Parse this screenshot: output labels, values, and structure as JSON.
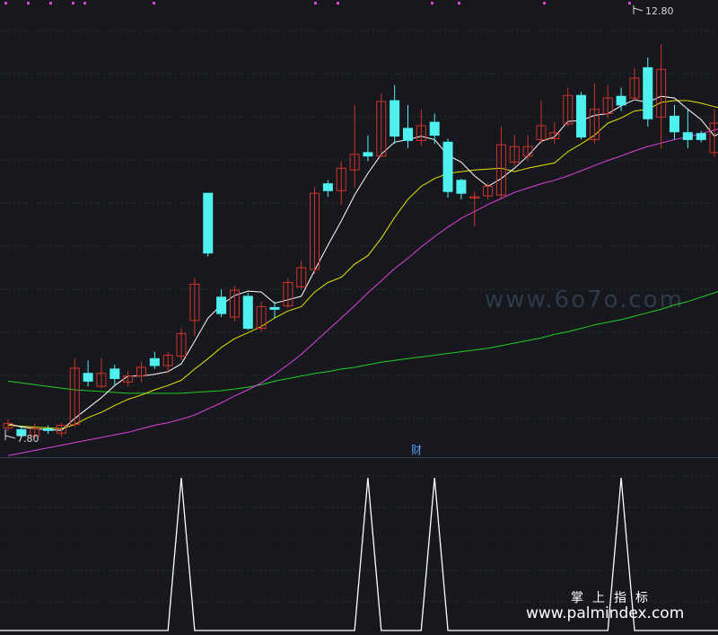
{
  "chart_data": [
    {
      "type": "candlestick",
      "y_range": [
        7.8,
        12.8
      ],
      "labels": {
        "max_price": "12.80",
        "min_price": "7.80"
      },
      "colors": {
        "up": "#d0342c",
        "down": "#4ef0f0",
        "ma5": "#ffffff",
        "ma10": "#e6e600",
        "ma20": "#e040e0",
        "ma60": "#22cc22"
      },
      "candles": [
        [
          7.92,
          7.97,
          8.02,
          7.88
        ],
        [
          7.9,
          7.83,
          7.95,
          7.81
        ],
        [
          7.83,
          7.91,
          7.97,
          7.8
        ],
        [
          7.91,
          7.89,
          7.95,
          7.85
        ],
        [
          7.86,
          7.95,
          7.98,
          7.82
        ],
        [
          7.96,
          8.61,
          8.72,
          7.93
        ],
        [
          8.55,
          8.46,
          8.7,
          8.4
        ],
        [
          8.4,
          8.55,
          8.73,
          8.38
        ],
        [
          8.6,
          8.49,
          8.65,
          8.4
        ],
        [
          8.45,
          8.52,
          8.58,
          8.4
        ],
        [
          8.52,
          8.62,
          8.68,
          8.45
        ],
        [
          8.72,
          8.64,
          8.8,
          8.6
        ],
        [
          8.64,
          8.76,
          8.8,
          8.55
        ],
        [
          8.75,
          9.01,
          9.08,
          8.7
        ],
        [
          9.16,
          9.58,
          9.65,
          8.98
        ],
        [
          10.63,
          9.94,
          10.6,
          9.9
        ],
        [
          9.43,
          9.24,
          9.52,
          9.2
        ],
        [
          9.2,
          9.51,
          9.56,
          9.15
        ],
        [
          9.44,
          9.07,
          9.48,
          9.05
        ],
        [
          9.07,
          9.32,
          9.38,
          9.03
        ],
        [
          9.31,
          9.29,
          9.38,
          9.19
        ],
        [
          9.33,
          9.6,
          9.65,
          9.3
        ],
        [
          9.55,
          9.77,
          9.85,
          9.52
        ],
        [
          9.75,
          10.63,
          10.7,
          9.7
        ],
        [
          10.74,
          10.66,
          10.78,
          10.59
        ],
        [
          10.66,
          10.92,
          11.0,
          10.5
        ],
        [
          10.9,
          11.08,
          11.65,
          10.7
        ],
        [
          11.1,
          11.06,
          11.3,
          11.0
        ],
        [
          11.06,
          11.69,
          11.78,
          11.05
        ],
        [
          11.7,
          11.29,
          11.88,
          11.2
        ],
        [
          11.38,
          11.24,
          11.65,
          11.15
        ],
        [
          11.24,
          11.41,
          11.6,
          11.18
        ],
        [
          11.45,
          11.3,
          11.55,
          11.2
        ],
        [
          11.22,
          10.65,
          11.26,
          10.58
        ],
        [
          10.78,
          10.63,
          10.8,
          10.56
        ],
        [
          10.59,
          10.59,
          10.65,
          10.25
        ],
        [
          10.6,
          10.71,
          10.75,
          10.56
        ],
        [
          10.61,
          11.19,
          11.4,
          10.58
        ],
        [
          10.99,
          11.17,
          11.3,
          10.95
        ],
        [
          11.06,
          11.17,
          11.3,
          11.0
        ],
        [
          11.25,
          11.41,
          11.7,
          11.2
        ],
        [
          11.26,
          11.33,
          11.45,
          11.2
        ],
        [
          11.43,
          11.76,
          11.85,
          11.4
        ],
        [
          11.76,
          11.28,
          11.8,
          11.25
        ],
        [
          11.25,
          11.6,
          11.9,
          11.2
        ],
        [
          11.55,
          11.73,
          11.88,
          11.5
        ],
        [
          11.75,
          11.65,
          11.85,
          11.58
        ],
        [
          11.73,
          11.96,
          12.08,
          11.7
        ],
        [
          12.08,
          11.49,
          12.2,
          11.4
        ],
        [
          11.51,
          12.06,
          12.35,
          11.15
        ],
        [
          11.52,
          11.34,
          11.65,
          11.25
        ],
        [
          11.33,
          11.25,
          11.6,
          11.15
        ],
        [
          11.32,
          11.25,
          11.35,
          11.22
        ],
        [
          11.1,
          11.44,
          11.6,
          11.05
        ],
        [
          11.41,
          11.48,
          11.55,
          11.35
        ]
      ],
      "ma5": [
        7.97,
        7.93,
        7.91,
        7.9,
        7.89,
        8.03,
        8.15,
        8.27,
        8.41,
        8.52,
        8.52,
        8.54,
        8.57,
        8.66,
        8.92,
        9.19,
        9.34,
        9.45,
        9.5,
        9.49,
        9.36,
        9.4,
        9.44,
        9.74,
        10.03,
        10.31,
        10.61,
        10.86,
        11.08,
        11.22,
        11.25,
        11.29,
        11.25,
        11.07,
        10.99,
        10.83,
        10.71,
        10.8,
        10.92,
        11.06,
        11.23,
        11.28,
        11.46,
        11.47,
        11.53,
        11.55,
        11.64,
        11.71,
        11.68,
        11.75,
        11.73,
        11.6,
        11.48,
        11.29,
        11.38
      ],
      "ma10": [
        7.95,
        7.94,
        7.93,
        7.92,
        7.91,
        7.96,
        8.04,
        8.1,
        8.18,
        8.25,
        8.3,
        8.36,
        8.41,
        8.47,
        8.6,
        8.72,
        8.85,
        8.95,
        9.02,
        9.09,
        9.19,
        9.27,
        9.32,
        9.49,
        9.6,
        9.66,
        9.81,
        9.91,
        10.11,
        10.35,
        10.56,
        10.71,
        10.8,
        10.86,
        10.88,
        10.9,
        10.91,
        10.92,
        10.88,
        10.92,
        10.95,
        10.98,
        11.11,
        11.2,
        11.3,
        11.44,
        11.5,
        11.58,
        11.6,
        11.68,
        11.7,
        11.7,
        11.67,
        11.63,
        11.6
      ],
      "ma20": [
        7.6,
        7.63,
        7.66,
        7.69,
        7.72,
        7.75,
        7.78,
        7.81,
        7.84,
        7.87,
        7.91,
        7.95,
        7.98,
        8.02,
        8.07,
        8.14,
        8.21,
        8.29,
        8.36,
        8.44,
        8.54,
        8.65,
        8.77,
        8.91,
        9.05,
        9.19,
        9.33,
        9.48,
        9.62,
        9.76,
        9.88,
        10.01,
        10.13,
        10.24,
        10.34,
        10.42,
        10.5,
        10.57,
        10.64,
        10.69,
        10.74,
        10.78,
        10.83,
        10.89,
        10.95,
        11.01,
        11.06,
        11.12,
        11.17,
        11.21,
        11.25,
        11.28,
        11.32,
        11.36,
        11.4
      ],
      "ma60": [
        8.46,
        8.44,
        8.42,
        8.4,
        8.38,
        8.36,
        8.35,
        8.34,
        8.33,
        8.32,
        8.32,
        8.32,
        8.32,
        8.32,
        8.33,
        8.34,
        8.35,
        8.37,
        8.39,
        8.42,
        8.46,
        8.49,
        8.52,
        8.55,
        8.57,
        8.6,
        8.62,
        8.65,
        8.68,
        8.7,
        8.72,
        8.74,
        8.76,
        8.78,
        8.8,
        8.82,
        8.84,
        8.87,
        8.9,
        8.93,
        8.96,
        9.0,
        9.03,
        9.07,
        9.11,
        9.14,
        9.17,
        9.21,
        9.25,
        9.29,
        9.34,
        9.38,
        9.43,
        9.48,
        9.53
      ]
    },
    {
      "type": "line",
      "indicator_label": "财",
      "signal_indices": [
        13,
        27,
        32,
        46
      ],
      "signal_values": [
        0,
        0,
        0,
        0,
        0,
        0,
        0,
        0,
        0,
        0,
        0,
        0,
        0,
        1,
        0,
        0,
        0,
        0,
        0,
        0,
        0,
        0,
        0,
        0,
        0,
        0,
        0,
        1,
        0,
        0,
        0,
        0,
        1,
        0,
        0,
        0,
        0,
        0,
        0,
        0,
        0,
        0,
        0,
        0,
        0,
        0,
        1,
        0,
        0,
        0,
        0,
        0,
        0,
        0,
        0
      ],
      "ylim": [
        0,
        1
      ]
    }
  ],
  "watermark": "www.6o7o.com",
  "brand": {
    "title": "掌上指标",
    "url": "www.palmindex.com"
  }
}
